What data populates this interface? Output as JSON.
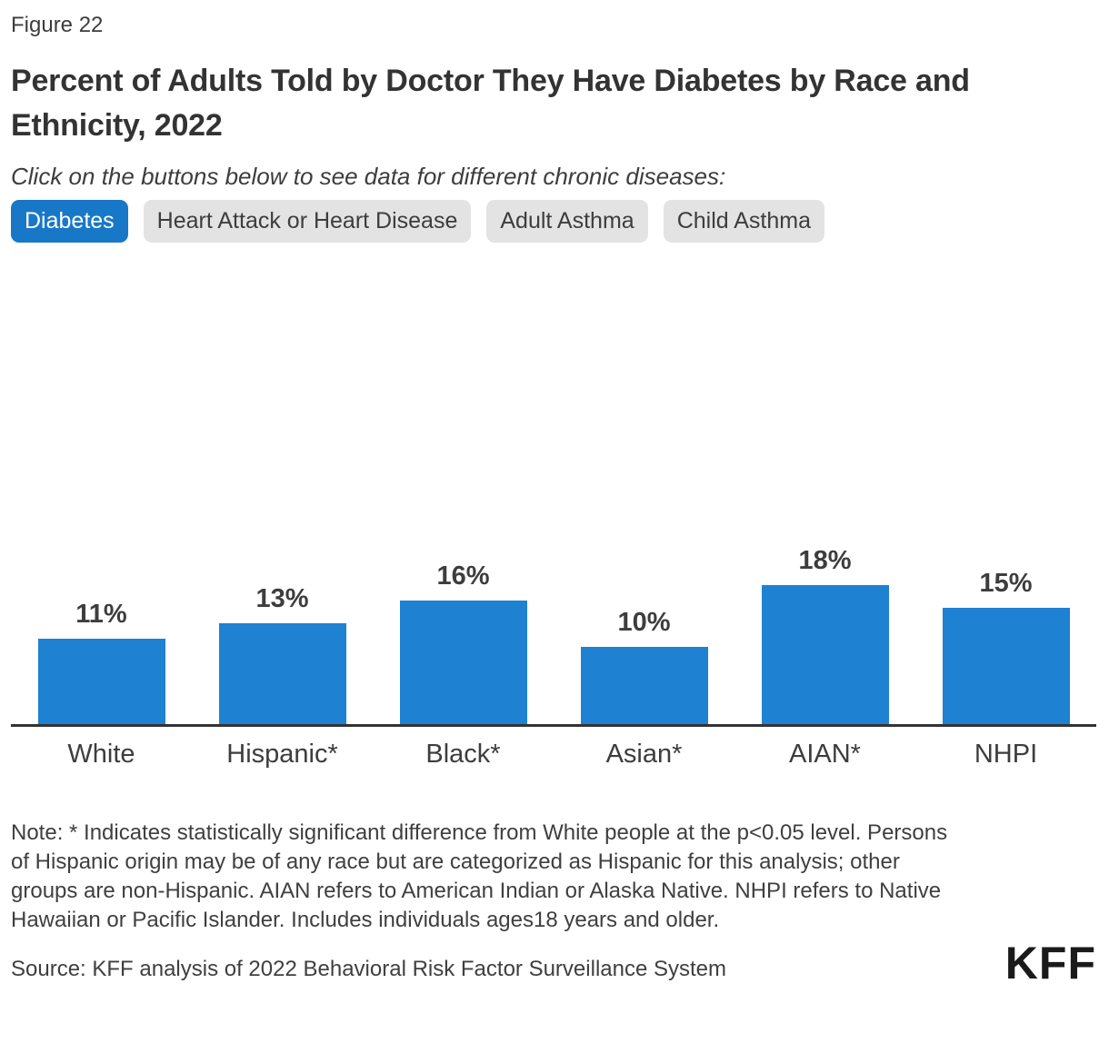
{
  "figure_label": "Figure 22",
  "title": "Percent of Adults Told by Doctor They Have Diabetes by Race and Ethnicity, 2022",
  "subtitle": "Click on the buttons below to see data for different chronic diseases:",
  "buttons": [
    {
      "label": "Diabetes",
      "active": true
    },
    {
      "label": "Heart Attack or Heart Disease",
      "active": false
    },
    {
      "label": "Adult Asthma",
      "active": false
    },
    {
      "label": "Child Asthma",
      "active": false
    }
  ],
  "chart_data": {
    "type": "bar",
    "title": "Percent of Adults Told by Doctor They Have Diabetes by Race and Ethnicity, 2022",
    "categories": [
      "White",
      "Hispanic*",
      "Black*",
      "Asian*",
      "AIAN*",
      "NHPI"
    ],
    "values": [
      11,
      13,
      16,
      10,
      18,
      15
    ],
    "value_labels": [
      "11%",
      "13%",
      "16%",
      "10%",
      "18%",
      "15%"
    ],
    "unit": "percent",
    "xlabel": "",
    "ylabel": "",
    "grid": false,
    "data_labels": "above bars",
    "legend": "none"
  },
  "note": "Note: * Indicates statistically significant difference from White people at the p<0.05 level. Persons of Hispanic origin may be of any race but are categorized as Hispanic for this analysis; other groups are non-Hispanic. AIAN refers to American Indian or Alaska Native. NHPI refers to Native Hawaiian or Pacific Islander. Includes individuals ages18 years and older.",
  "source": "Source: KFF analysis of 2022 Behavioral Risk Factor Surveillance System",
  "logo": "KFF",
  "colors": {
    "bar_color": "#1e81d2",
    "button_active_bg": "#1878c8",
    "button_inactive_bg": "#e3e3e3",
    "axis_color": "#333333",
    "logo_color": "#1a1a1a"
  }
}
